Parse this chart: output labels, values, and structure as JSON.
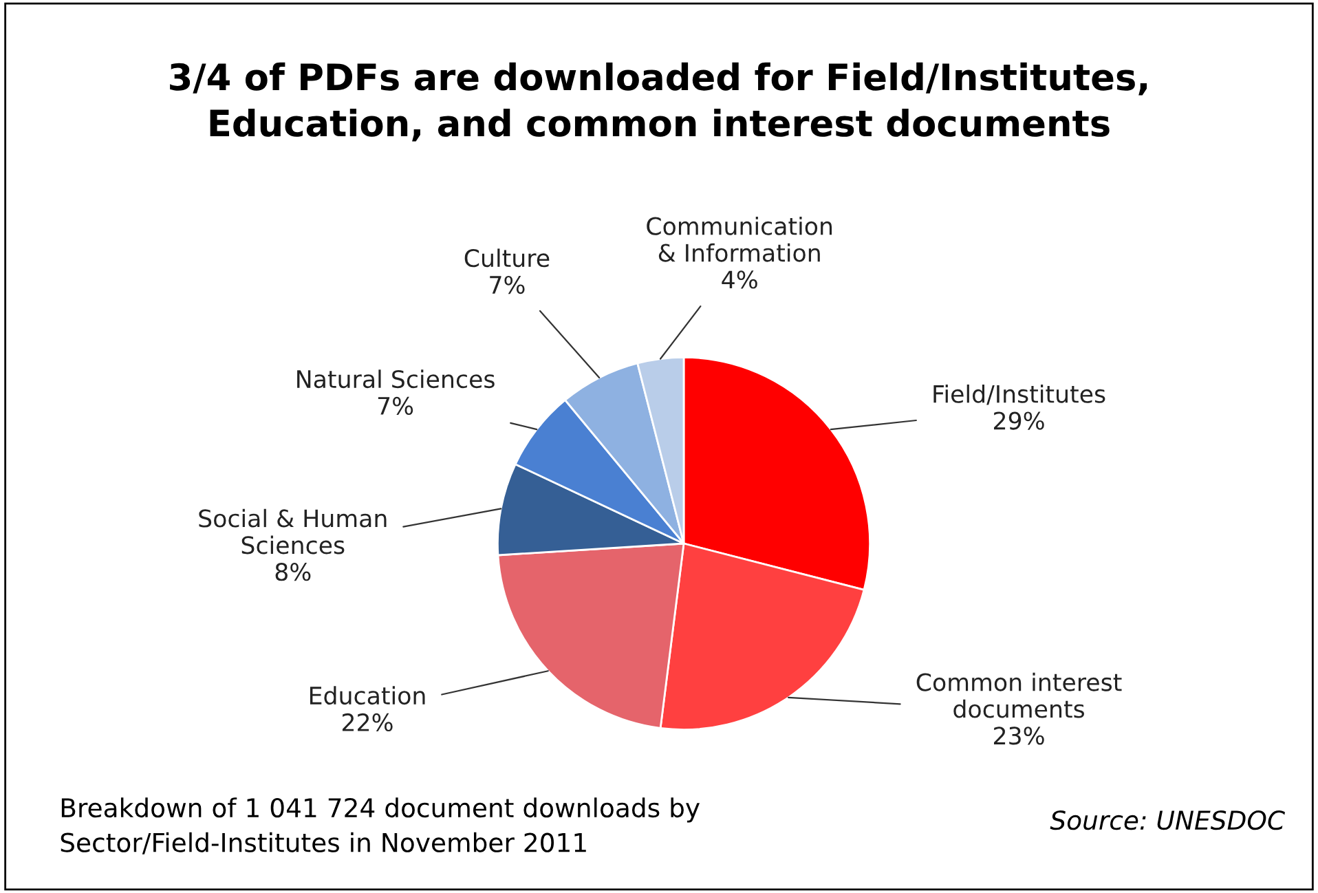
{
  "chart_data": {
    "type": "pie",
    "title": "3/4 of PDFs are downloaded for Field/Institutes,\nEducation, and common interest documents",
    "categories": [
      "Field/Institutes",
      "Common interest\ndocuments",
      "Education",
      "Social & Human\nSciences",
      "Natural Sciences",
      "Culture",
      "Communication\n& Information"
    ],
    "values": [
      29,
      23,
      22,
      8,
      7,
      7,
      4
    ],
    "value_labels": [
      "29%",
      "23%",
      "22%",
      "8%",
      "7%",
      "7%",
      "4%"
    ],
    "colors": [
      "#ff0000",
      "#ff4040",
      "#e5646b",
      "#355f95",
      "#4a80d2",
      "#8eb1e1",
      "#b9cde9"
    ],
    "annotations": [
      "Breakdown of 1 041 724 document downloads by\nSector/Field-Institutes in November 2011",
      "Source: UNESDOC"
    ],
    "legend": false
  }
}
